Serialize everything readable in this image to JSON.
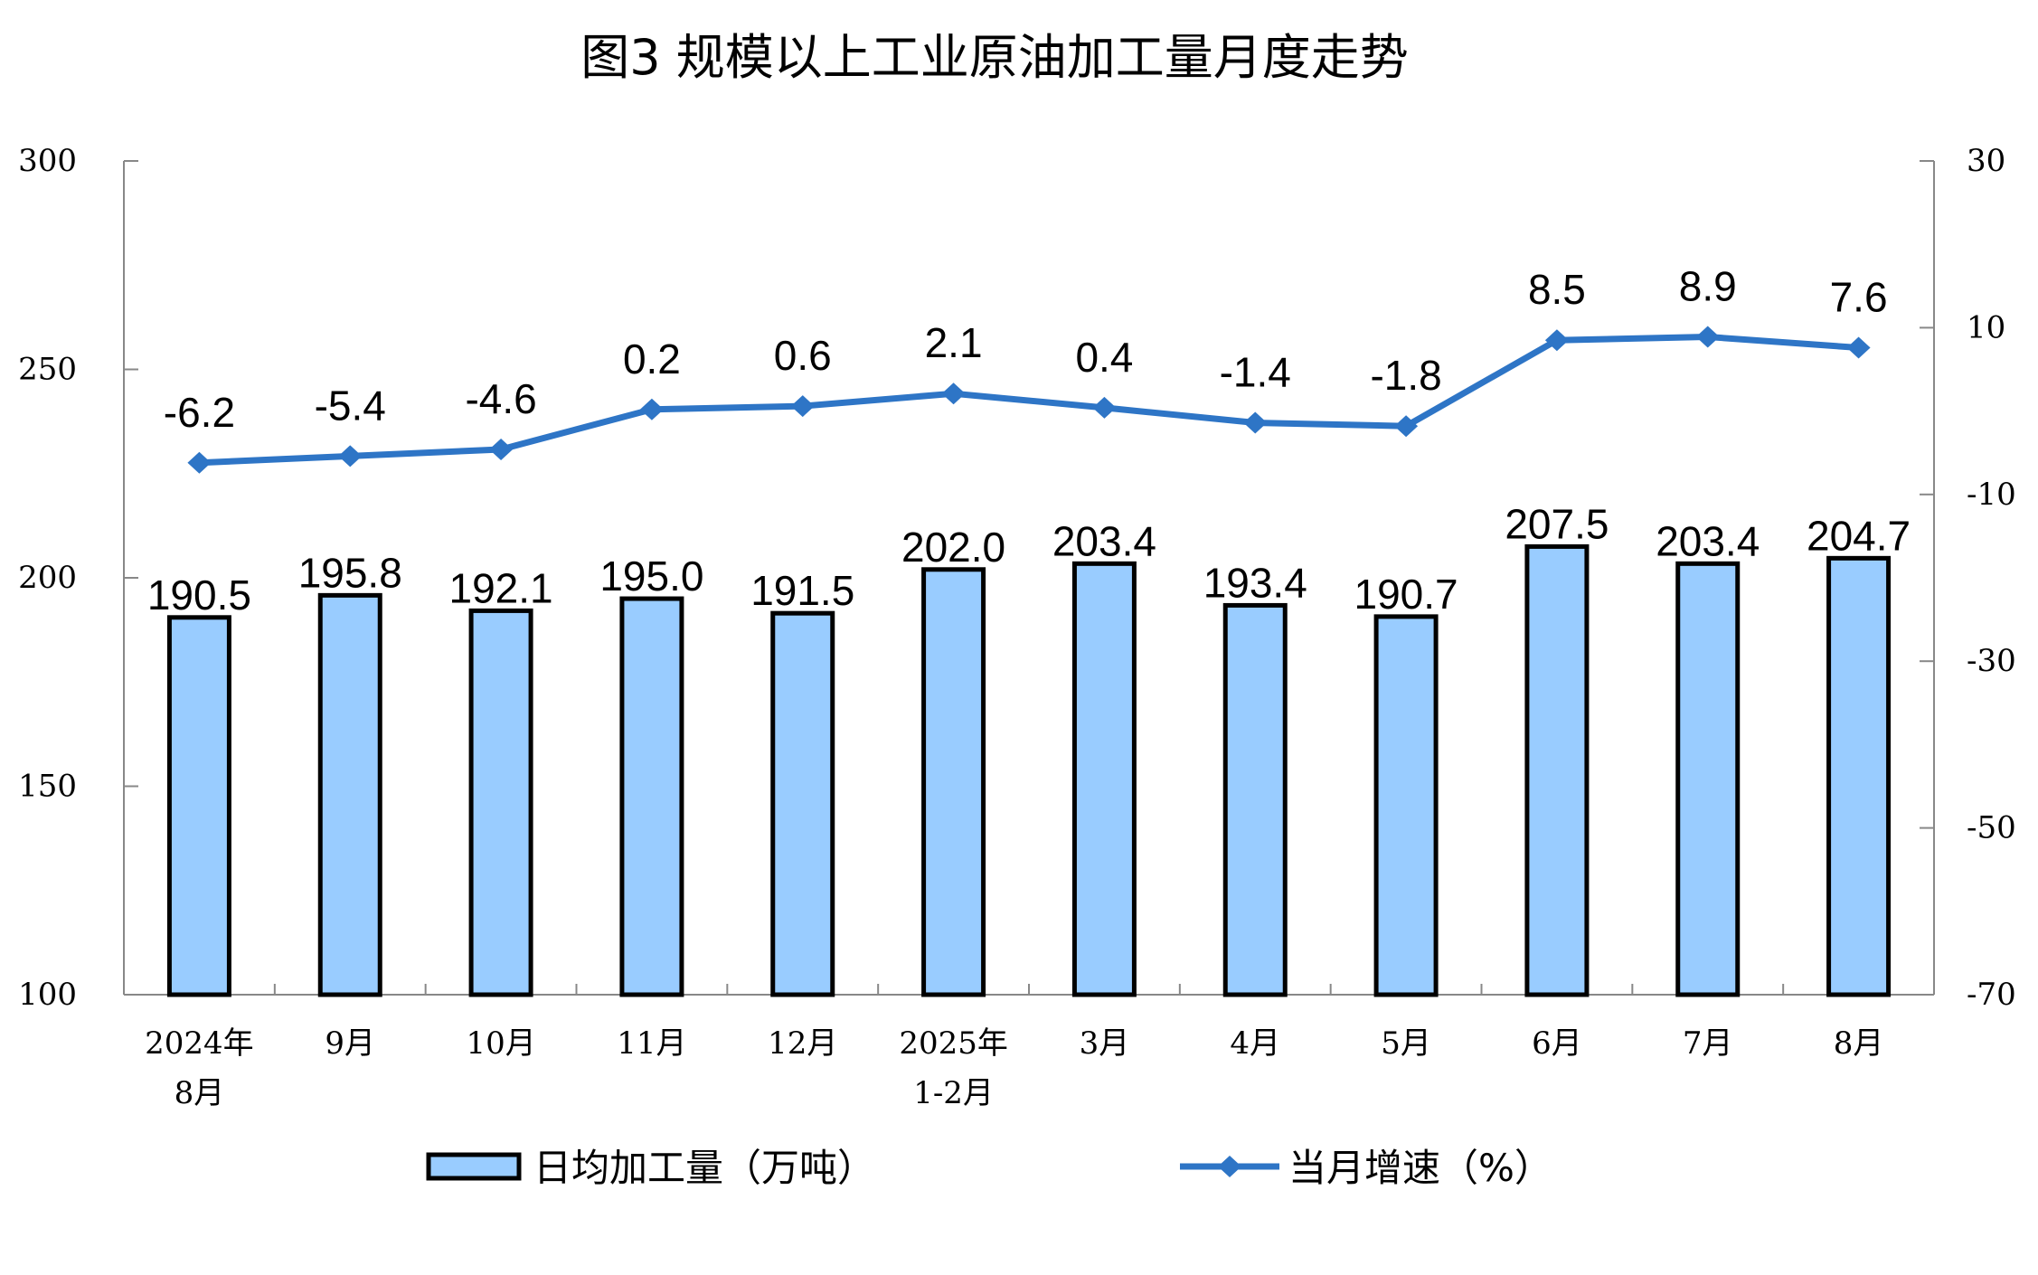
{
  "chart_data": {
    "type": "bar+line",
    "title": "图3  规模以上工业原油加工量月度走势",
    "categories": [
      "2024年\n8月",
      "9月",
      "10月",
      "11月",
      "12月",
      "2025年\n1-2月",
      "3月",
      "4月",
      "5月",
      "6月",
      "7月",
      "8月"
    ],
    "series": [
      {
        "name": "日均加工量（万吨）",
        "type": "bar",
        "axis": "left",
        "values": [
          190.5,
          195.8,
          192.1,
          195.0,
          191.5,
          202.0,
          203.4,
          193.4,
          190.7,
          207.5,
          203.4,
          204.7
        ],
        "labels": [
          "190.5",
          "195.8",
          "192.1",
          "195.0",
          "191.5",
          "202.0",
          "203.4",
          "193.4",
          "190.7",
          "207.5",
          "203.4",
          "204.7"
        ],
        "color": "#99CCFF"
      },
      {
        "name": "当月增速（%）",
        "type": "line",
        "axis": "right",
        "values": [
          -6.2,
          -5.4,
          -4.6,
          0.2,
          0.6,
          2.1,
          0.4,
          -1.4,
          -1.8,
          8.5,
          8.9,
          7.6
        ],
        "labels": [
          "-6.2",
          "-5.4",
          "-4.6",
          "0.2",
          "0.6",
          "2.1",
          "0.4",
          "-1.4",
          "-1.8",
          "8.5",
          "8.9",
          "7.6"
        ],
        "color": "#2E75C6"
      }
    ],
    "ylim_left": [
      100,
      300
    ],
    "yticks_left": [
      "100",
      "150",
      "200",
      "250",
      "300"
    ],
    "ylim_right": [
      -70,
      30
    ],
    "yticks_right": [
      "-70",
      "-50",
      "-30",
      "-10",
      "10",
      "30"
    ],
    "grid": false,
    "legend_position": "bottom"
  }
}
